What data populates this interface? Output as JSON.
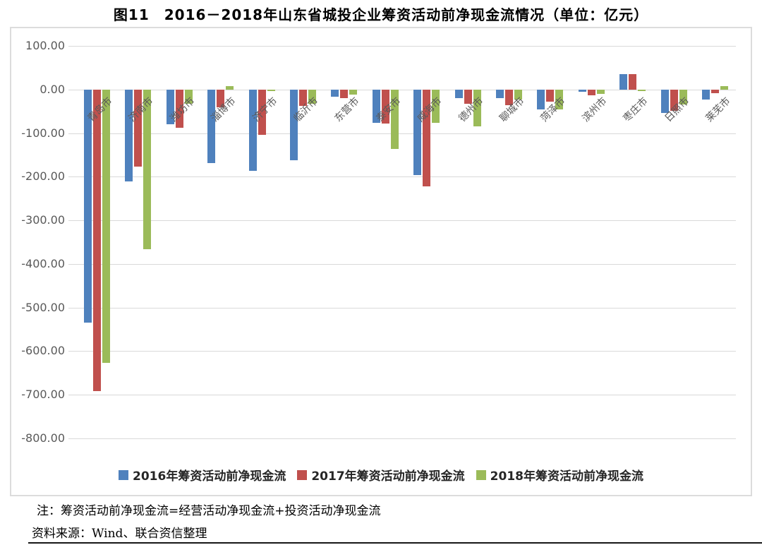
{
  "figure": {
    "title": "图11　2016－2018年山东省城投企业筹资活动前净现金流情况（单位：亿元）"
  },
  "chart_data": {
    "type": "bar",
    "title": "图11 2016－2018年山东省城投企业筹资活动前净现金流情况",
    "unit": "亿元",
    "categories": [
      "青岛市",
      "济南市",
      "潍坊市",
      "淄博市",
      "济宁市",
      "临沂市",
      "东营市",
      "泰安市",
      "威海市",
      "德州市",
      "聊城市",
      "菏泽市",
      "滨州市",
      "枣庄市",
      "日照市",
      "莱芜市"
    ],
    "series": [
      {
        "name": "2016年筹资活动前净现金流",
        "color": "#4F81BD",
        "values": [
          -535,
          -210,
          -80,
          -168,
          -186,
          -162,
          -16,
          -76,
          -196,
          -19,
          -19,
          -46,
          -5,
          35,
          -54,
          -22
        ]
      },
      {
        "name": "2017年筹资活动前净现金流",
        "color": "#C0504D",
        "values": [
          -692,
          -176,
          -88,
          -40,
          -103,
          -38,
          -19,
          -78,
          -222,
          -32,
          -36,
          -27,
          -13,
          35,
          -49,
          -8
        ]
      },
      {
        "name": "2018年筹资活动前净现金流",
        "color": "#9BBB59",
        "values": [
          -628,
          -366,
          -32,
          8,
          -4,
          -32,
          -12,
          -136,
          -76,
          -84,
          -22,
          -45,
          -9,
          -4,
          -34,
          8
        ]
      }
    ],
    "ylim": [
      -800,
      100
    ],
    "ytick_step": 100,
    "ytick_label_format": "0.00",
    "grid": true,
    "legend_position": "bottom",
    "axis_label_color": "#595959",
    "gridline_color": "#d9d9d9"
  },
  "notes": {
    "note": "注：筹资活动前净现金流=经营活动净现金流+投资活动净现金流",
    "source": "资料来源：Wind、联合资信整理"
  }
}
